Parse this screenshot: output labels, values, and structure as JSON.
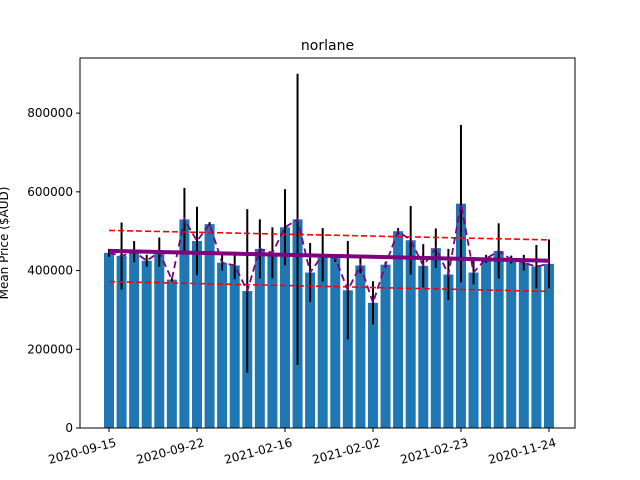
{
  "chart_data": {
    "type": "bar",
    "title": "norlane",
    "ylabel": "Mean Price ($AUD)",
    "xlabel": "",
    "ylim": [
      0,
      940000
    ],
    "yticks": [
      0,
      200000,
      400000,
      600000,
      800000
    ],
    "ytick_labels": [
      "0",
      "200000",
      "400000",
      "600000",
      "800000"
    ],
    "xtick_labels": [
      "2020-09-15",
      "2020-09-22",
      "2021-02-16",
      "2021-02-02",
      "2021-02-23",
      "2020-11-24"
    ],
    "xtick_positions": [
      0,
      7,
      14,
      21,
      28,
      35
    ],
    "bar_color": "#1f77b4",
    "errorbar_color": "#000000",
    "mean_line_color": "#800080",
    "band_color": "#ff0000",
    "values": [
      445000,
      437000,
      448000,
      425000,
      447000,
      377000,
      530000,
      475000,
      518000,
      420000,
      413000,
      348000,
      455000,
      445000,
      510000,
      530000,
      395000,
      440000,
      432000,
      350000,
      413000,
      318000,
      415000,
      500000,
      477000,
      412000,
      457000,
      390000,
      570000,
      395000,
      430000,
      450000,
      428000,
      420000,
      410000,
      417000
    ],
    "errors": [
      10000,
      85000,
      27000,
      15000,
      37000,
      5000,
      80000,
      87000,
      5000,
      20000,
      35000,
      208000,
      75000,
      65000,
      97000,
      370000,
      75000,
      68000,
      10000,
      125000,
      20000,
      55000,
      7000,
      8000,
      87000,
      55000,
      50000,
      65000,
      200000,
      30000,
      10000,
      70000,
      10000,
      20000,
      55000,
      62000
    ],
    "trend_line": [
      450000,
      425000
    ],
    "upper_band": [
      502000,
      478000
    ],
    "lower_band": [
      372000,
      347000
    ]
  }
}
